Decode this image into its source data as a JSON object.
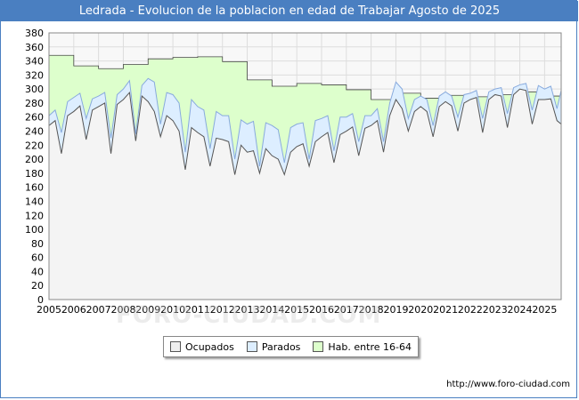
{
  "title": "Ledrada - Evolucion de la poblacion en edad de Trabajar Agosto de 2025",
  "source": "http://www.foro-ciudad.com",
  "watermark": "FORO-CIUDAD.COM",
  "colors": {
    "header": "#4a7fc1",
    "ocupados_fill": "#eeeeee",
    "ocupados_line": "#555555",
    "parados_fill": "#ddeeff",
    "parados_line": "#88aadd",
    "hab_fill": "#ddffcc",
    "hab_line": "#444444"
  },
  "legend": [
    {
      "label": "Ocupados",
      "color": "#eeeeee"
    },
    {
      "label": "Parados",
      "color": "#ddeeff"
    },
    {
      "label": "Hab. entre 16-64",
      "color": "#ddffcc"
    }
  ],
  "chart_data": {
    "type": "area",
    "xlim": [
      2005,
      2025.67
    ],
    "ylim": [
      0,
      380
    ],
    "grid": true,
    "x_ticks": [
      "2005",
      "2006",
      "2007",
      "2008",
      "2009",
      "2010",
      "2011",
      "2012",
      "2013",
      "2014",
      "2015",
      "2016",
      "2017",
      "2018",
      "2019",
      "2020",
      "2021",
      "2022",
      "2023",
      "2024",
      "2025"
    ],
    "y_ticks": [
      0,
      20,
      40,
      60,
      80,
      100,
      120,
      140,
      160,
      180,
      200,
      220,
      240,
      260,
      280,
      300,
      320,
      340,
      360,
      380
    ],
    "series": [
      {
        "name": "Hab. entre 16-64",
        "x": [
          2005,
          2006,
          2007,
          2008,
          2009,
          2010,
          2011,
          2012,
          2013,
          2014,
          2015,
          2016,
          2017,
          2018,
          2019,
          2020,
          2021,
          2022,
          2023,
          2024,
          2025
        ],
        "values": [
          348,
          333,
          329,
          335,
          343,
          345,
          346,
          339,
          313,
          304,
          308,
          306,
          299,
          285,
          294,
          287,
          291,
          289,
          292,
          296,
          290
        ]
      },
      {
        "name": "Parados",
        "x": [
          2005,
          2005.25,
          2005.5,
          2005.75,
          2006,
          2006.25,
          2006.5,
          2006.75,
          2007,
          2007.25,
          2007.5,
          2007.75,
          2008,
          2008.25,
          2008.5,
          2008.75,
          2009,
          2009.25,
          2009.5,
          2009.75,
          2010,
          2010.25,
          2010.5,
          2010.75,
          2011,
          2011.25,
          2011.5,
          2011.75,
          2012,
          2012.25,
          2012.5,
          2012.75,
          2013,
          2013.25,
          2013.5,
          2013.75,
          2014,
          2014.25,
          2014.5,
          2014.75,
          2015,
          2015.25,
          2015.5,
          2015.75,
          2016,
          2016.25,
          2016.5,
          2016.75,
          2017,
          2017.25,
          2017.5,
          2017.75,
          2018,
          2018.25,
          2018.5,
          2018.75,
          2019,
          2019.25,
          2019.5,
          2019.75,
          2020,
          2020.25,
          2020.5,
          2020.75,
          2021,
          2021.25,
          2021.5,
          2021.75,
          2022,
          2022.25,
          2022.5,
          2022.75,
          2023,
          2023.25,
          2023.5,
          2023.75,
          2024,
          2024.25,
          2024.5,
          2024.75,
          2025,
          2025.25,
          2025.5,
          2025.67
        ],
        "values": [
          262,
          270,
          238,
          282,
          288,
          294,
          258,
          286,
          290,
          295,
          230,
          292,
          300,
          312,
          236,
          305,
          315,
          310,
          250,
          295,
          292,
          280,
          210,
          285,
          275,
          270,
          215,
          268,
          262,
          262,
          200,
          256,
          250,
          254,
          190,
          252,
          248,
          242,
          195,
          245,
          250,
          252,
          200,
          255,
          258,
          262,
          212,
          260,
          260,
          265,
          225,
          262,
          262,
          272,
          225,
          280,
          310,
          300,
          258,
          285,
          290,
          285,
          248,
          290,
          296,
          290,
          260,
          292,
          294,
          298,
          258,
          296,
          300,
          302,
          265,
          302,
          306,
          308,
          270,
          305,
          300,
          304,
          272,
          298
        ]
      },
      {
        "name": "Ocupados",
        "x": [
          2005,
          2005.25,
          2005.5,
          2005.75,
          2006,
          2006.25,
          2006.5,
          2006.75,
          2007,
          2007.25,
          2007.5,
          2007.75,
          2008,
          2008.25,
          2008.5,
          2008.75,
          2009,
          2009.25,
          2009.5,
          2009.75,
          2010,
          2010.25,
          2010.5,
          2010.75,
          2011,
          2011.25,
          2011.5,
          2011.75,
          2012,
          2012.25,
          2012.5,
          2012.75,
          2013,
          2013.25,
          2013.5,
          2013.75,
          2014,
          2014.25,
          2014.5,
          2014.75,
          2015,
          2015.25,
          2015.5,
          2015.75,
          2016,
          2016.25,
          2016.5,
          2016.75,
          2017,
          2017.25,
          2017.5,
          2017.75,
          2018,
          2018.25,
          2018.5,
          2018.75,
          2019,
          2019.25,
          2019.5,
          2019.75,
          2020,
          2020.25,
          2020.5,
          2020.75,
          2021,
          2021.25,
          2021.5,
          2021.75,
          2022,
          2022.25,
          2022.5,
          2022.75,
          2023,
          2023.25,
          2023.5,
          2023.75,
          2024,
          2024.25,
          2024.5,
          2024.75,
          2025,
          2025.25,
          2025.5,
          2025.67
        ],
        "values": [
          248,
          255,
          208,
          262,
          268,
          276,
          228,
          270,
          275,
          280,
          208,
          278,
          285,
          295,
          226,
          290,
          282,
          268,
          232,
          262,
          255,
          240,
          185,
          245,
          238,
          232,
          190,
          230,
          228,
          225,
          178,
          220,
          210,
          212,
          180,
          215,
          205,
          200,
          178,
          210,
          218,
          222,
          190,
          225,
          232,
          238,
          195,
          235,
          240,
          246,
          205,
          244,
          248,
          255,
          210,
          262,
          285,
          272,
          240,
          268,
          275,
          268,
          232,
          275,
          282,
          276,
          240,
          280,
          285,
          288,
          238,
          285,
          292,
          290,
          245,
          292,
          300,
          298,
          250,
          285,
          285,
          286,
          255,
          250
        ]
      }
    ]
  }
}
